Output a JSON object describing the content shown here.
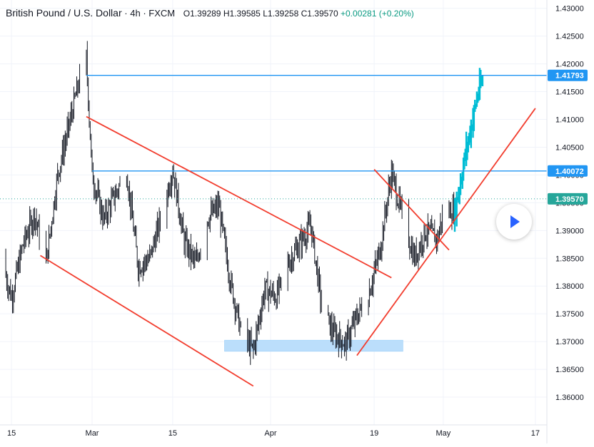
{
  "legend": {
    "symbol": "British Pound / U.S. Dollar",
    "sep1": "·",
    "interval": "4h",
    "sep2": "·",
    "exchange": "FXCM",
    "open": "O1.39289",
    "high": "H1.39585",
    "low": "L1.39258",
    "close": "C1.39570",
    "change": "+0.00281 (+0.20%)"
  },
  "colors": {
    "up": "#131722",
    "price_line": "#26a69a",
    "level": "#2196f3",
    "trendline": "#f23d2e",
    "zone": "#bbdefb",
    "highlight_candles": "#00bcd4"
  },
  "chart_data": {
    "type": "candlestick",
    "title": "British Pound / U.S. Dollar · 4h · FXCM",
    "y_range": [
      1.355,
      1.4315
    ],
    "x_range_days": [
      "2021-02-13",
      "2021-05-19"
    ],
    "y_ticks": [
      "1.43000",
      "1.42500",
      "1.42000",
      "1.41500",
      "1.41000",
      "1.40500",
      "1.40000",
      "1.39500",
      "1.39000",
      "1.38500",
      "1.38000",
      "1.37500",
      "1.37000",
      "1.36500",
      "1.36000"
    ],
    "x_ticks": [
      {
        "label": "15",
        "date": "2021-02-15"
      },
      {
        "label": "Mar",
        "date": "2021-03-01"
      },
      {
        "label": "15",
        "date": "2021-03-15"
      },
      {
        "label": "Apr",
        "date": "2021-04-01"
      },
      {
        "label": "19",
        "date": "2021-04-19"
      },
      {
        "label": "May",
        "date": "2021-05-01"
      },
      {
        "label": "17",
        "date": "2021-05-17"
      }
    ],
    "price_path": [
      [
        "2021-02-13",
        1.3855
      ],
      [
        "2021-02-15",
        1.378
      ],
      [
        "2021-02-17",
        1.3875
      ],
      [
        "2021-02-19",
        1.393
      ],
      [
        "2021-02-21",
        1.384
      ],
      [
        "2021-02-23",
        1.4
      ],
      [
        "2021-02-25",
        1.409
      ],
      [
        "2021-02-27",
        1.418
      ],
      [
        "2021-02-28",
        1.421
      ],
      [
        "2021-03-01",
        1.4
      ],
      [
        "2021-03-03",
        1.392
      ],
      [
        "2021-03-05",
        1.3965
      ],
      [
        "2021-03-07",
        1.4005
      ],
      [
        "2021-03-09",
        1.3835
      ],
      [
        "2021-03-11",
        1.385
      ],
      [
        "2021-03-13",
        1.3925
      ],
      [
        "2021-03-15",
        1.401
      ],
      [
        "2021-03-17",
        1.388
      ],
      [
        "2021-03-19",
        1.384
      ],
      [
        "2021-03-21",
        1.392
      ],
      [
        "2021-03-23",
        1.3945
      ],
      [
        "2021-03-25",
        1.381
      ],
      [
        "2021-03-27",
        1.371
      ],
      [
        "2021-03-29",
        1.3685
      ],
      [
        "2021-03-31",
        1.3795
      ],
      [
        "2021-04-02",
        1.378
      ],
      [
        "2021-04-04",
        1.384
      ],
      [
        "2021-04-06",
        1.3875
      ],
      [
        "2021-04-08",
        1.391
      ],
      [
        "2021-04-10",
        1.3755
      ],
      [
        "2021-04-12",
        1.3715
      ],
      [
        "2021-04-14",
        1.3695
      ],
      [
        "2021-04-16",
        1.3745
      ],
      [
        "2021-04-18",
        1.3785
      ],
      [
        "2021-04-20",
        1.3865
      ],
      [
        "2021-04-22",
        1.4005
      ],
      [
        "2021-04-24",
        1.392
      ],
      [
        "2021-04-26",
        1.385
      ],
      [
        "2021-04-28",
        1.39
      ],
      [
        "2021-04-30",
        1.3885
      ],
      [
        "2021-05-01",
        1.3935
      ],
      [
        "2021-05-03",
        1.3935
      ],
      [
        "2021-05-05",
        1.4045
      ],
      [
        "2021-05-07",
        1.4145
      ],
      [
        "2021-05-08",
        1.4175
      ]
    ],
    "highlight_from": "2021-05-03",
    "last_price": 1.3957,
    "price_labels": [
      "1.41793",
      "1.40072",
      "1.39570"
    ],
    "horizontal_levels": [
      {
        "price": 1.41793,
        "from": "2021-02-28",
        "label": "1.41793"
      },
      {
        "price": 1.40072,
        "from": "2021-03-01",
        "label": "1.40072"
      }
    ],
    "trendlines": [
      {
        "from": [
          "2021-02-20",
          1.3855
        ],
        "to": [
          "2021-03-29",
          1.362
        ]
      },
      {
        "from": [
          "2021-02-28",
          1.4105
        ],
        "to": [
          "2021-04-22",
          1.3815
        ]
      },
      {
        "from": [
          "2021-04-19",
          1.401
        ],
        "to": [
          "2021-05-02",
          1.3865
        ]
      },
      {
        "from": [
          "2021-04-16",
          1.3675
        ],
        "to": [
          "2021-05-17",
          1.412
        ]
      }
    ],
    "support_zone": {
      "from": "2021-03-24",
      "to": "2021-04-24",
      "price_top": 1.37,
      "price_bottom": 1.3685
    }
  }
}
